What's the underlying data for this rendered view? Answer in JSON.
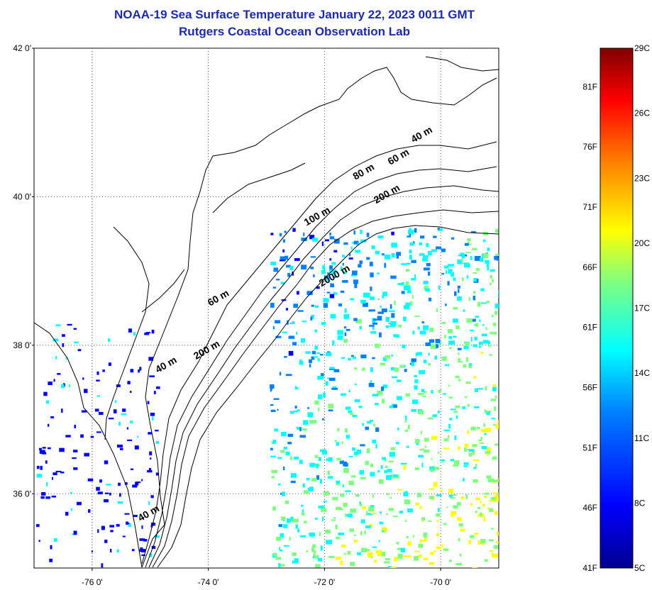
{
  "header": {
    "title": "NOAA-19 Sea Surface Temperature January 22, 2023 0011 GMT",
    "subtitle": "Rutgers Coastal Ocean Observation Lab"
  },
  "map": {
    "lat_labels": [
      "42 0'",
      "40 0'",
      "38 0'",
      "36 0'"
    ],
    "lon_labels": [
      "-76 0'",
      "-74 0'",
      "-72 0'",
      "-70 0'"
    ],
    "lat_ticks": [
      42,
      40,
      38,
      36
    ],
    "lon_ticks": [
      -76,
      -74,
      -72,
      -70
    ],
    "lat_range": [
      35,
      42
    ],
    "lon_range": [
      -77,
      -69
    ],
    "isobath_labels": [
      {
        "text": "40 m",
        "lon": -70.3,
        "lat": 40.8
      },
      {
        "text": "60 m",
        "lon": -70.7,
        "lat": 40.5
      },
      {
        "text": "80 m",
        "lon": -71.3,
        "lat": 40.3
      },
      {
        "text": "200 m",
        "lon": -70.9,
        "lat": 40.0
      },
      {
        "text": "100 m",
        "lon": -72.1,
        "lat": 39.7
      },
      {
        "text": "2000 m",
        "lon": -71.8,
        "lat": 38.9
      },
      {
        "text": "60 m",
        "lon": -73.8,
        "lat": 38.6
      },
      {
        "text": "200 m",
        "lon": -74.0,
        "lat": 37.9
      },
      {
        "text": "40 m",
        "lon": -74.7,
        "lat": 37.7
      },
      {
        "text": "40 m",
        "lon": -75.0,
        "lat": 35.7
      }
    ]
  },
  "colorbar": {
    "celsius_labels": [
      "29C",
      "26C",
      "23C",
      "20C",
      "17C",
      "14C",
      "11C",
      "8C",
      "5C"
    ],
    "celsius_values": [
      29,
      26,
      23,
      20,
      17,
      14,
      11,
      8,
      5
    ],
    "fahrenheit_labels": [
      "81F",
      "76F",
      "71F",
      "66F",
      "61F",
      "56F",
      "51F",
      "46F",
      "41F"
    ],
    "fahrenheit_values": [
      81,
      76,
      71,
      66,
      61,
      56,
      51,
      46,
      41
    ],
    "range_c": [
      5,
      29
    ],
    "colors": [
      "#00008f",
      "#0000ff",
      "#0080ff",
      "#00ffff",
      "#80ff80",
      "#ffff00",
      "#ff8000",
      "#ff0000",
      "#800000"
    ]
  }
}
